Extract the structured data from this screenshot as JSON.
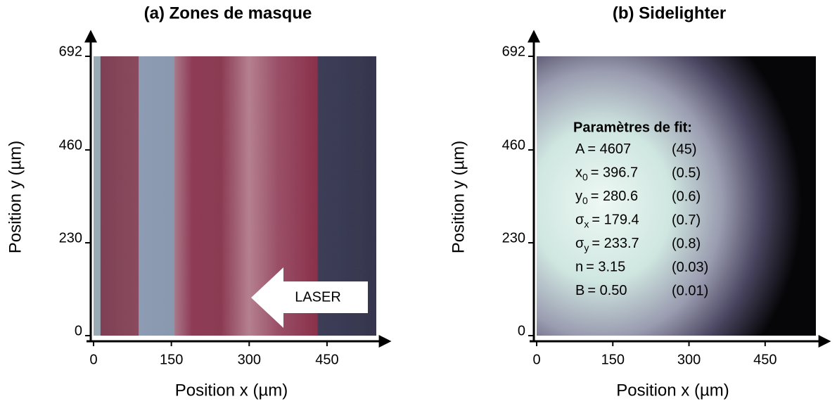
{
  "chart_data": [
    {
      "type": "image",
      "title": "(a) Zones de masque",
      "xlabel": "Position x (µm)",
      "ylabel": "Position y (µm)",
      "xlim": [
        0,
        545
      ],
      "ylim": [
        0,
        692
      ],
      "xticks": [
        0,
        150,
        300,
        450
      ],
      "yticks": [
        0,
        230,
        460,
        692
      ],
      "annotation": "LASER"
    },
    {
      "type": "image",
      "title": "(b) Sidelighter",
      "xlabel": "Position x (µm)",
      "ylabel": "Position y (µm)",
      "xlim": [
        0,
        550
      ],
      "ylim": [
        0,
        692
      ],
      "xticks": [
        0,
        150,
        300,
        450
      ],
      "yticks": [
        0,
        230,
        460,
        692
      ],
      "fit_parameters": {
        "title": "Paramètres de fit:",
        "rows": [
          {
            "symbol": "A",
            "value": "= 4607",
            "error": "(45)"
          },
          {
            "symbol": "x",
            "subscript": "0",
            "value": "= 396.7",
            "error": "(0.5)"
          },
          {
            "symbol": "y",
            "subscript": "0",
            "value": "= 280.6",
            "error": "(0.6)"
          },
          {
            "symbol": "σ",
            "subscript": "x",
            "value": "= 179.4",
            "error": "(0.7)"
          },
          {
            "symbol": "σ",
            "subscript": "y",
            "value": "= 233.7",
            "error": "(0.8)"
          },
          {
            "symbol": "n",
            "value": "= 3.15",
            "error": "(0.03)"
          },
          {
            "symbol": "B",
            "value": "= 0.50",
            "error": "(0.01)"
          }
        ]
      }
    }
  ]
}
